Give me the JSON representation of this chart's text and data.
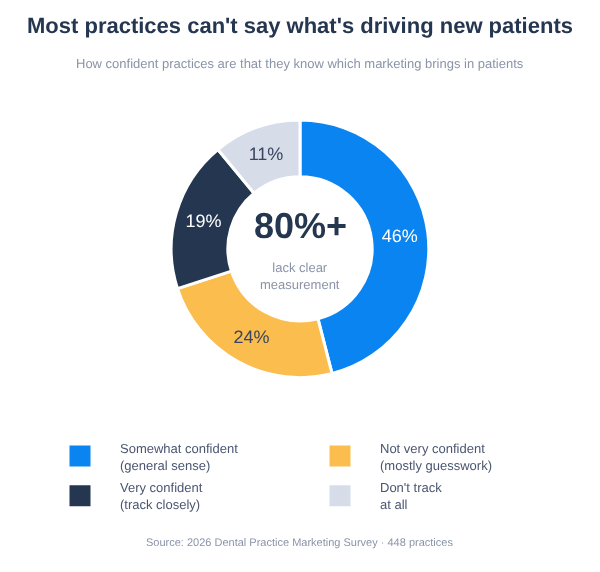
{
  "chart_data": {
    "type": "donut",
    "title": "Most practices can't say what's driving new patients",
    "subtitle": "How confident practices are that they know which marketing brings in patients",
    "categories": [
      "Somewhat confident (general sense)",
      "Not very confident (mostly guesswork)",
      "Very confident (track closely)",
      "Don't track at all"
    ],
    "values": [
      46,
      24,
      19,
      11
    ],
    "colors": [
      "#0a84f0",
      "#fbbd4e",
      "#253650",
      "#d6dde8"
    ],
    "value_labels": [
      "46%",
      "24%",
      "19%",
      "11%"
    ],
    "legend": "bottom",
    "annotations": [
      "80%+",
      "lack clear measurement",
      "Source: 2026 Dental Practice Marketing Survey · 448 practices"
    ]
  }
}
